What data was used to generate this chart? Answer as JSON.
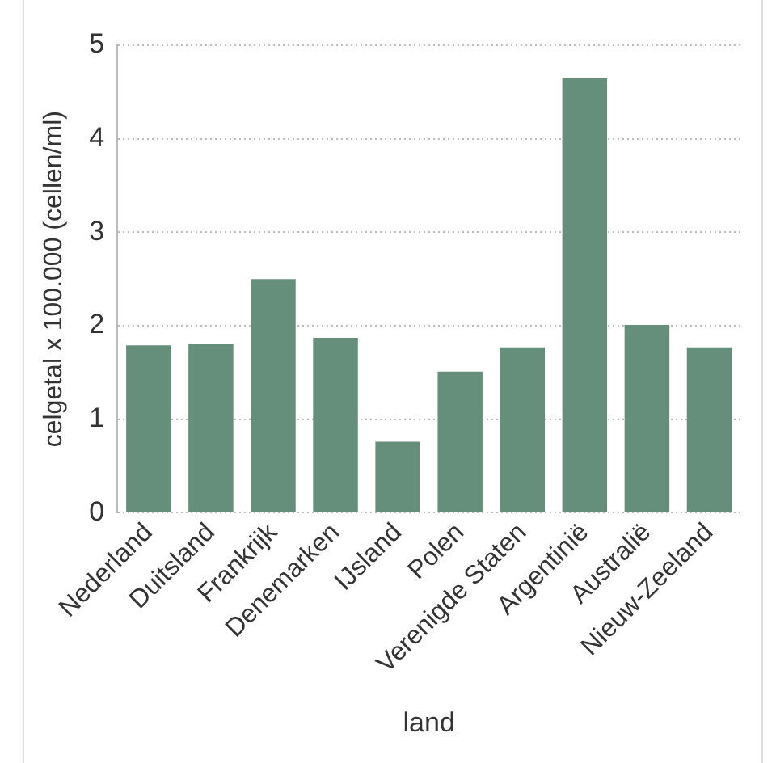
{
  "chart_data": {
    "type": "bar",
    "xlabel": "land",
    "ylabel": "celgetal x 100.000 (cellen/ml)",
    "categories": [
      "Nederland",
      "Duitsland",
      "Frankrijk",
      "Denemarken",
      "IJsland",
      "Polen",
      "Verenigde Staten",
      "Argentinië",
      "Australië",
      "Nieuw-Zeeland"
    ],
    "values": [
      1.79,
      1.81,
      2.5,
      1.87,
      0.76,
      1.51,
      1.77,
      4.65,
      2.01,
      1.77
    ],
    "color": "#668f7b",
    "ylim": [
      0,
      5
    ],
    "yticks": [
      0,
      1,
      2,
      3,
      4,
      5
    ],
    "grid": "y"
  }
}
